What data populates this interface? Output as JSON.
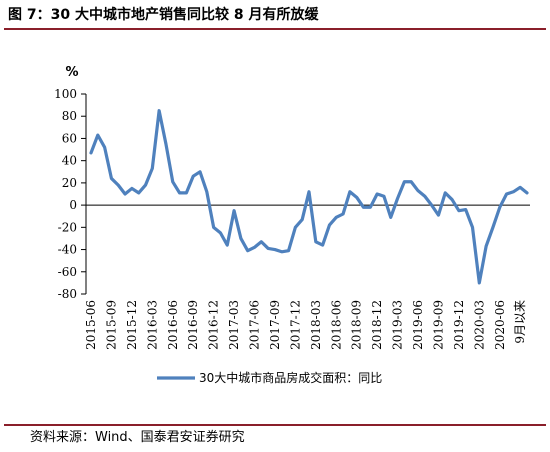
{
  "header": {
    "title": "图 7：30 大中城市地产销售同比较 8 月有所放缓"
  },
  "footer": {
    "source": "资料来源：Wind、国泰君安证券研究"
  },
  "chart_data": {
    "type": "line",
    "ylabel": "%",
    "ylim": [
      -80,
      100
    ],
    "yticks": [
      100,
      80,
      60,
      40,
      20,
      0,
      -20,
      -40,
      -60,
      -80
    ],
    "grid": false,
    "legend_position": "bottom",
    "x_tick_labels": [
      "2015-06",
      "2015-09",
      "2015-12",
      "2016-03",
      "2016-06",
      "2016-09",
      "2016-12",
      "2017-03",
      "2017-06",
      "2017-09",
      "2017-12",
      "2018-03",
      "2018-06",
      "2018-09",
      "2018-12",
      "2019-03",
      "2019-06",
      "2019-09",
      "2019-12",
      "2020-03",
      "2020-06",
      "9月以来"
    ],
    "series": [
      {
        "name": "30大中城市商品房成交面积：同比",
        "color": "#4f81bd",
        "values": [
          47,
          63,
          52,
          24,
          18,
          10,
          15,
          11,
          18,
          33,
          85,
          55,
          21,
          11,
          11,
          26,
          30,
          12,
          -20,
          -25,
          -36,
          -5,
          -30,
          -41,
          -38,
          -33,
          -39,
          -40,
          -42,
          -41,
          -20,
          -13,
          12,
          -33,
          -36,
          -18,
          -11,
          -8,
          12,
          7,
          -2,
          -2,
          10,
          8,
          -11,
          6,
          21,
          21,
          13,
          8,
          0,
          -9,
          11,
          5,
          -5,
          -4,
          -20,
          -70,
          -37,
          -20,
          -2,
          10,
          12,
          16,
          11
        ]
      }
    ]
  }
}
